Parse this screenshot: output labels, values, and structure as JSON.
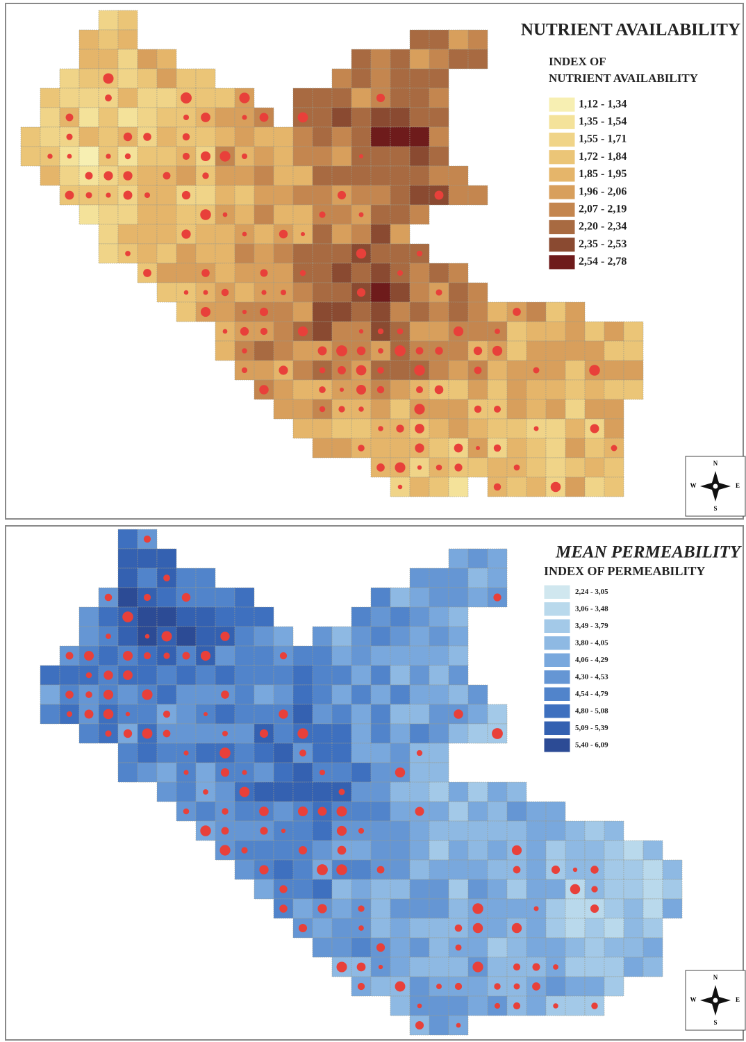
{
  "panels": [
    {
      "title": "NUTRIENT AVAILABILITY",
      "legend_title": [
        "INDEX OF",
        "NUTRIENT AVAILABILITY"
      ],
      "legend_items": [
        "1,12 - 1,34",
        "1,35 - 1,54",
        "1,55 - 1,71",
        "1,72 - 1,84",
        "1,85 - 1,95",
        "1,96 - 2,06",
        "2,07 - 2,19",
        "2,20 - 2,34",
        "2,35 - 2,53",
        "2,54 - 2,78"
      ],
      "legend_colors": [
        "#f7efb2",
        "#f4e29a",
        "#f0d488",
        "#ebc577",
        "#e5b56a",
        "#d89f5c",
        "#c4864f",
        "#a86a41",
        "#8a4a31",
        "#6e1b1b"
      ],
      "compass": {
        "n": "N",
        "e": "E",
        "s": "S",
        "w": "W"
      }
    },
    {
      "title": "MEAN PERMEABILITY",
      "legend_title": [
        "INDEX OF PERMEABILITY"
      ],
      "legend_items": [
        "2,24 - 3,05",
        "3,06 - 3,48",
        "3,49 - 3,79",
        "3,80 - 4,05",
        "4,06 - 4,29",
        "4,30 - 4,53",
        "4,54 - 4,79",
        "4,80 - 5,08",
        "5,09 - 5,39",
        "5,40 - 6,09"
      ],
      "legend_colors": [
        "#d0e7ef",
        "#b9d9ec",
        "#a3c9e8",
        "#8eb9e3",
        "#79a8dd",
        "#6596d4",
        "#5184cb",
        "#3e70bf",
        "#3461b1",
        "#2c4b95"
      ],
      "compass": {
        "n": "N",
        "e": "E",
        "s": "S",
        "w": "W"
      }
    }
  ]
}
